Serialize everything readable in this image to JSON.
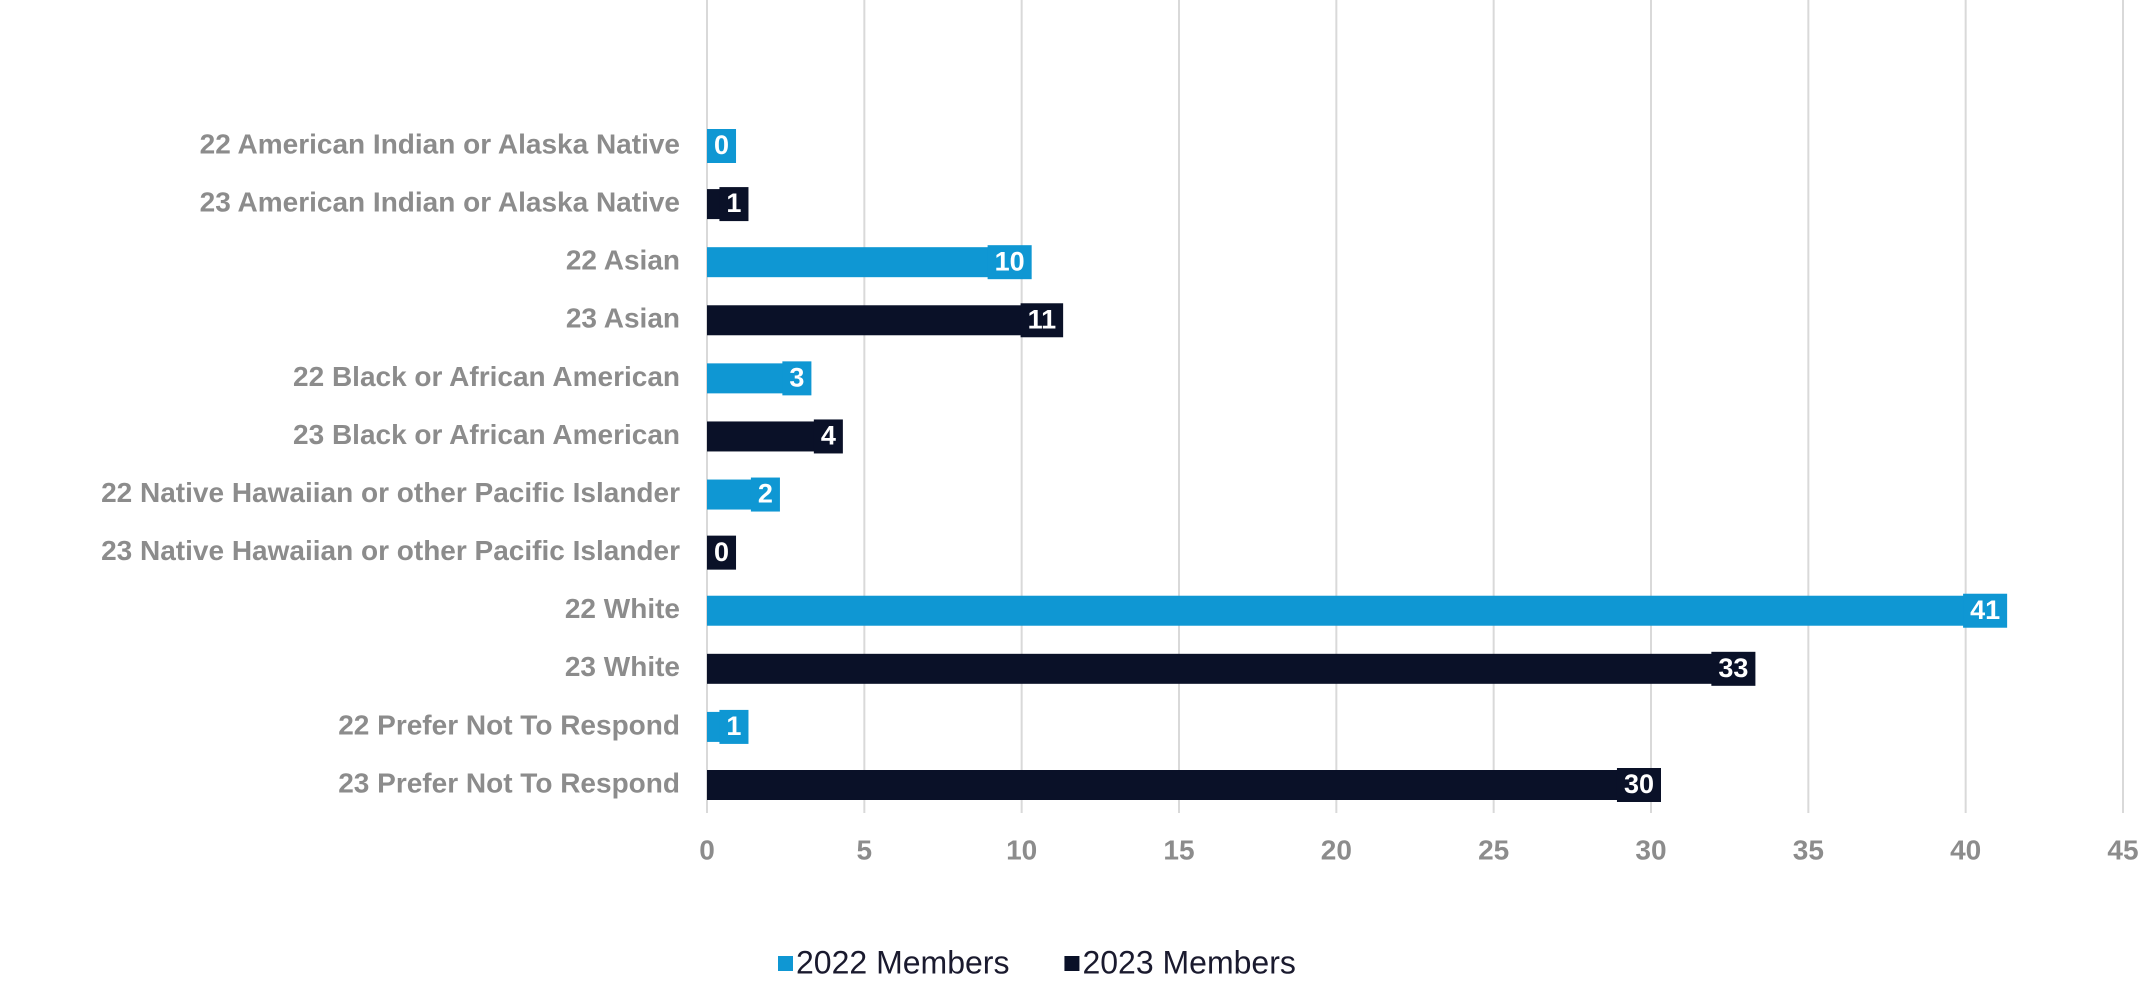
{
  "chart_data": {
    "type": "bar",
    "orientation": "horizontal",
    "categories": [
      "22 American Indian or Alaska Native",
      "23 American Indian or Alaska Native",
      "22 Asian",
      "23 Asian",
      "22 Black or African American",
      "23 Black or African American",
      "22 Native Hawaiian or other Pacific Islander",
      "23 Native Hawaiian or other Pacific Islander",
      "22 White",
      "23 White",
      "22 Prefer Not To Respond",
      "23 Prefer Not To Respond"
    ],
    "series": [
      {
        "name": "2022 Members",
        "color": "#0f97d3",
        "values": [
          0,
          null,
          10,
          null,
          3,
          null,
          2,
          null,
          41,
          null,
          1,
          null
        ]
      },
      {
        "name": "2023 Members",
        "color": "#0a1128",
        "values": [
          null,
          1,
          null,
          11,
          null,
          4,
          null,
          0,
          null,
          33,
          null,
          30
        ]
      }
    ],
    "xlim": [
      0,
      45
    ],
    "xticks": [
      0,
      5,
      10,
      15,
      20,
      25,
      30,
      35,
      40,
      45
    ],
    "grid": true,
    "legend": "bottom"
  }
}
